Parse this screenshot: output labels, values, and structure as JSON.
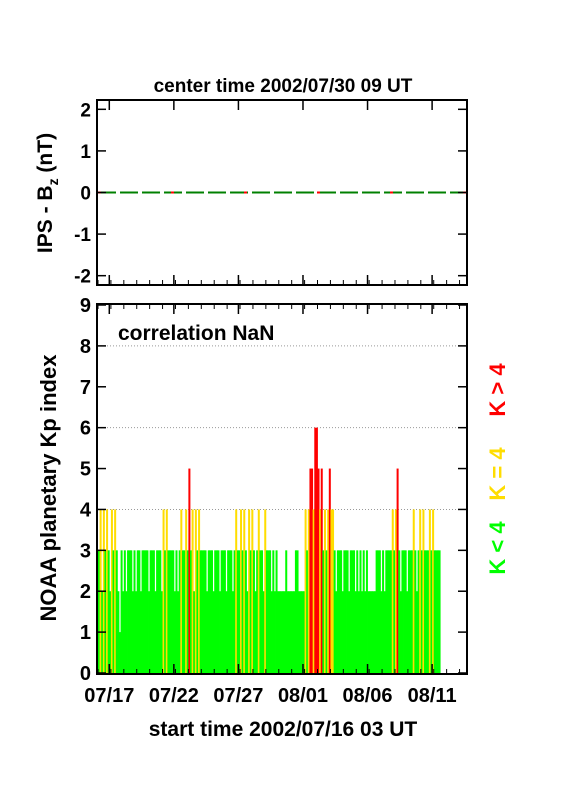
{
  "chart_data": [
    {
      "type": "line",
      "title": "center time 2002/07/30 09 UT",
      "ylabel_main": "IPS - B",
      "ylabel_sub": "z",
      "ylabel_unit": " (nT)",
      "ylim": [
        -2.2,
        2.2
      ],
      "yticks": [
        "-2",
        "-1",
        "0",
        "1",
        "2"
      ],
      "ytick_values": [
        -2,
        -1,
        0,
        1,
        2
      ],
      "series": [
        {
          "values": [
            0,
            0
          ],
          "x": [
            0,
            28.5
          ],
          "color": "#008000",
          "style": "dashed"
        },
        {
          "values": [
            0,
            0
          ],
          "x": [
            0,
            28.5
          ],
          "color": "#ff0000",
          "style": "dotted"
        }
      ]
    },
    {
      "type": "bar",
      "annotation": "correlation NaN",
      "ylabel": "NOAA planetary Kp index",
      "xlabel": "start time 2002/07/16 03 UT",
      "ylim": [
        0,
        9
      ],
      "yticks": [
        "0",
        "1",
        "2",
        "3",
        "4",
        "5",
        "6",
        "7",
        "8",
        "9"
      ],
      "xlim": [
        0,
        28.5
      ],
      "xticks": [
        "07/17",
        "07/22",
        "07/27",
        "08/01",
        "08/06",
        "08/11"
      ],
      "xtick_days": [
        0.875,
        5.875,
        10.875,
        15.875,
        20.875,
        25.875
      ],
      "grid_levels": [
        4,
        6,
        8
      ],
      "legend": [
        {
          "label": "K < 4",
          "color": "#00ff00"
        },
        {
          "label": "K = 4",
          "color": "#ffdd00"
        },
        {
          "label": "K > 4",
          "color": "#ff0000"
        }
      ],
      "bar_width_days": 0.125,
      "values": [
        3,
        4,
        2,
        4,
        3,
        4,
        3,
        2,
        4,
        3,
        4,
        3,
        2,
        1,
        3,
        2,
        3,
        2,
        3,
        3,
        3,
        2,
        3,
        2,
        3,
        3,
        2,
        3,
        3,
        3,
        3,
        2,
        3,
        3,
        3,
        2,
        3,
        3,
        3,
        2,
        4,
        3,
        4,
        3,
        3,
        3,
        3,
        2,
        3,
        2,
        3,
        4,
        3,
        3,
        4,
        3,
        5,
        3,
        4,
        2,
        4,
        3,
        4,
        3,
        3,
        3,
        3,
        2,
        3,
        3,
        3,
        2,
        3,
        3,
        3,
        2,
        3,
        3,
        3,
        2,
        3,
        3,
        3,
        2,
        3,
        4,
        3,
        3,
        4,
        3,
        4,
        3,
        2,
        4,
        3,
        4,
        3,
        2,
        3,
        4,
        3,
        3,
        2,
        4,
        3,
        3,
        3,
        2,
        3,
        2,
        3,
        2,
        2,
        2,
        2,
        2,
        3,
        2,
        2,
        2,
        2,
        2,
        3,
        3,
        2,
        2,
        2,
        2,
        4,
        3,
        4,
        5,
        5,
        4,
        6,
        6,
        5,
        4,
        5,
        3,
        4,
        3,
        4,
        5,
        4,
        4,
        3,
        2,
        3,
        3,
        3,
        2,
        3,
        3,
        3,
        2,
        3,
        3,
        3,
        2,
        3,
        2,
        3,
        2,
        3,
        2,
        3,
        2,
        2,
        2,
        2,
        2,
        3,
        3,
        3,
        2,
        3,
        2,
        3,
        3,
        3,
        3,
        4,
        3,
        4,
        5,
        3,
        2,
        3,
        3,
        3,
        2,
        3,
        3,
        3,
        4,
        3,
        2,
        3,
        4,
        3,
        4,
        3,
        3,
        3,
        4,
        3,
        4,
        3,
        3,
        3,
        3
      ]
    }
  ]
}
